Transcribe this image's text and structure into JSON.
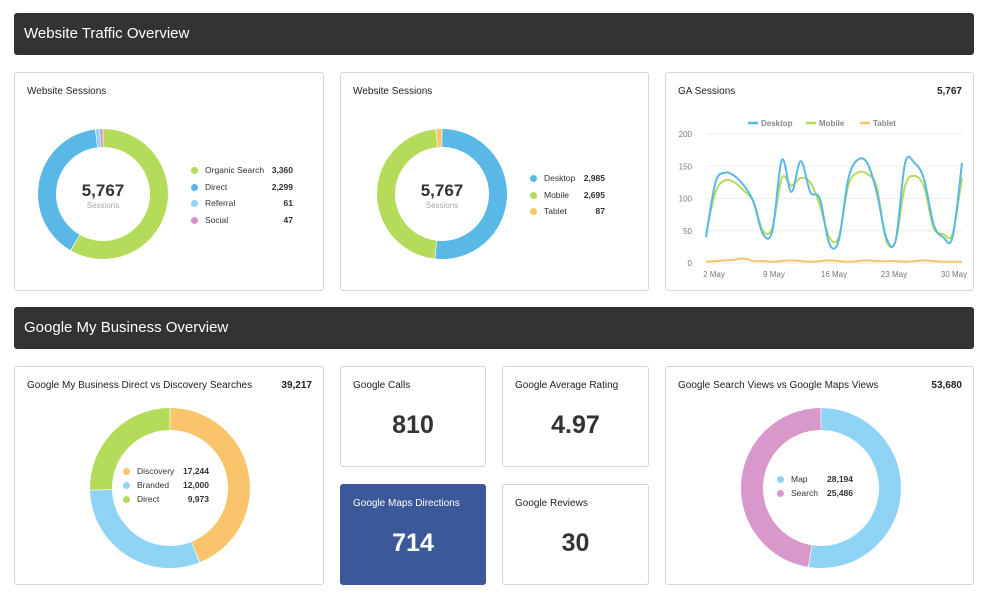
{
  "sections": {
    "traffic_title": "Website Traffic Overview",
    "gmb_title": "Google My Business Overview"
  },
  "cards": {
    "sessions_source": {
      "title": "Website Sessions",
      "center_value": "5,767",
      "center_label": "Sessions",
      "legend": [
        {
          "label": "Organic Search",
          "value": "3,360",
          "color": "#b5db5a"
        },
        {
          "label": "Direct",
          "value": "2,299",
          "color": "#5ab8e6"
        },
        {
          "label": "Referral",
          "value": "61",
          "color": "#8fd3f5"
        },
        {
          "label": "Social",
          "value": "47",
          "color": "#d98fcb"
        }
      ]
    },
    "sessions_device": {
      "title": "Website Sessions",
      "center_value": "5,767",
      "center_label": "Sessions",
      "legend": [
        {
          "label": "Desktop",
          "value": "2,985",
          "color": "#5ab8e6"
        },
        {
          "label": "Mobile",
          "value": "2,695",
          "color": "#b5db5a"
        },
        {
          "label": "Tablet",
          "value": "87",
          "color": "#f7c56b"
        }
      ]
    },
    "ga_sessions": {
      "title": "GA Sessions",
      "total": "5,767"
    },
    "gmb_searches": {
      "title": "Google My Business Direct vs Discovery Searches",
      "total": "39,217",
      "legend": [
        {
          "label": "Discovery",
          "value": "17,244",
          "color": "#f9c46b"
        },
        {
          "label": "Branded",
          "value": "12,000",
          "color": "#8fd3f5"
        },
        {
          "label": "Direct",
          "value": "9,973",
          "color": "#b5db5a"
        }
      ]
    },
    "google_calls": {
      "title": "Google Calls",
      "value": "810"
    },
    "google_rating": {
      "title": "Google Average Rating",
      "value": "4.97"
    },
    "maps_directions": {
      "title": "Google Maps Directions",
      "value": "714"
    },
    "google_reviews": {
      "title": "Google Reviews",
      "value": "30"
    },
    "search_maps_views": {
      "title": "Google Search Views vs Google Maps Views",
      "total": "53,680",
      "legend": [
        {
          "label": "Map",
          "value": "28,194",
          "color": "#8fd3f5"
        },
        {
          "label": "Search",
          "value": "25,486",
          "color": "#d898cb"
        }
      ]
    }
  },
  "chart_data": [
    {
      "type": "pie",
      "variant": "donut",
      "categories": [
        "Organic Search",
        "Direct",
        "Referral",
        "Social"
      ],
      "values": [
        3360,
        2299,
        61,
        47
      ],
      "colors": [
        "#b5db5a",
        "#5ab8e6",
        "#8fd3f5",
        "#d98fcb"
      ]
    },
    {
      "type": "pie",
      "variant": "donut",
      "categories": [
        "Desktop",
        "Mobile",
        "Tablet"
      ],
      "values": [
        2985,
        2695,
        87
      ],
      "colors": [
        "#5ab8e6",
        "#b5db5a",
        "#f7c56b"
      ]
    },
    {
      "type": "line",
      "x_ticks": [
        "2 May",
        "9 May",
        "16 May",
        "23 May",
        "30 May"
      ],
      "y_ticks": [
        0,
        50,
        100,
        150,
        200
      ],
      "ylim": [
        0,
        200
      ],
      "grid": true,
      "legend_position": "top",
      "series": [
        {
          "name": "Desktop",
          "color": "#5ab8e6",
          "values": [
            40,
            125,
            140,
            135,
            120,
            95,
            45,
            50,
            160,
            110,
            158,
            110,
            100,
            30,
            35,
            130,
            160,
            155,
            110,
            40,
            35,
            155,
            155,
            130,
            60,
            40,
            40,
            155
          ]
        },
        {
          "name": "Mobile",
          "color": "#b5db5a",
          "values": [
            45,
            110,
            128,
            125,
            112,
            95,
            50,
            55,
            132,
            120,
            132,
            125,
            90,
            40,
            40,
            120,
            140,
            138,
            118,
            35,
            35,
            120,
            135,
            118,
            55,
            45,
            45,
            132
          ]
        },
        {
          "name": "Tablet",
          "color": "#f7c56b",
          "values": [
            2,
            3,
            4,
            5,
            7,
            3,
            3,
            2,
            3,
            4,
            3,
            2,
            3,
            4,
            3,
            2,
            3,
            4,
            3,
            3,
            3,
            2,
            3,
            4,
            3,
            2,
            2,
            2
          ]
        }
      ]
    },
    {
      "type": "pie",
      "variant": "donut",
      "categories": [
        "Discovery",
        "Branded",
        "Direct"
      ],
      "values": [
        17244,
        12000,
        9973
      ],
      "colors": [
        "#f9c46b",
        "#8fd3f5",
        "#b5db5a"
      ]
    },
    {
      "type": "pie",
      "variant": "donut",
      "categories": [
        "Map",
        "Search"
      ],
      "values": [
        28194,
        25486
      ],
      "colors": [
        "#8fd3f5",
        "#d898cb"
      ]
    }
  ]
}
